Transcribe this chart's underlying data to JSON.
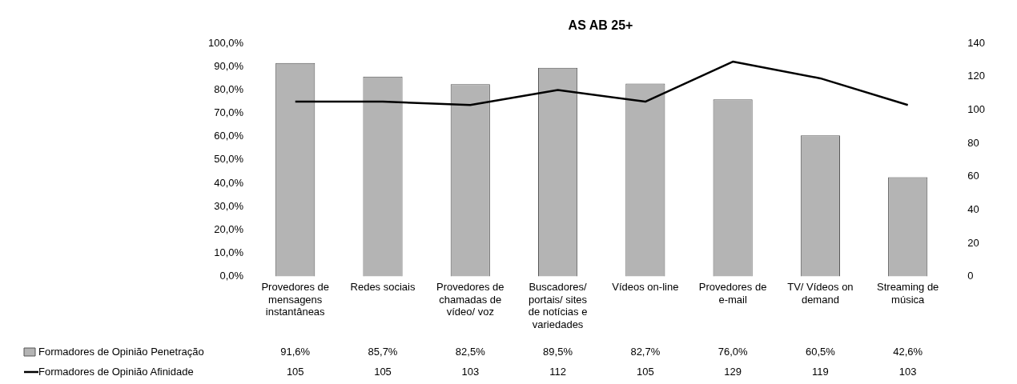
{
  "chart_data": {
    "type": "bar",
    "title": "AS AB 25+",
    "categories": [
      "Provedores de mensagens instantâneas",
      "Redes sociais",
      "Provedores de chamadas de vídeo/ voz",
      "Buscadores/ portais/ sites de notícias e variedades",
      "Vídeos on-line",
      "Provedores de e-mail",
      "TV/ Vídeos on demand",
      "Streaming de música"
    ],
    "series": [
      {
        "name": "Formadores de Opinião Penetração",
        "color": "#b4b4b4",
        "values": [
          91.6,
          85.7,
          82.5,
          89.5,
          82.7,
          76.0,
          60.5,
          42.6
        ],
        "value_labels": [
          "91,6%",
          "85,7%",
          "82,5%",
          "89,5%",
          "82,7%",
          "76,0%",
          "60,5%",
          "42,6%"
        ]
      },
      {
        "name": "Formadores de Opinião Afinidade",
        "type": "line",
        "axis": "y2",
        "color": "#000000",
        "values": [
          105,
          105,
          103,
          112,
          105,
          129,
          119,
          103
        ],
        "value_labels": [
          "105",
          "105",
          "103",
          "112",
          "105",
          "129",
          "119",
          "103"
        ]
      }
    ],
    "ylim": [
      0,
      100
    ],
    "yticks": [
      {
        "value": 0,
        "label": "0,0%"
      },
      {
        "value": 10,
        "label": "10,0%"
      },
      {
        "value": 20,
        "label": "20,0%"
      },
      {
        "value": 30,
        "label": "30,0%"
      },
      {
        "value": 40,
        "label": "40,0%"
      },
      {
        "value": 50,
        "label": "50,0%"
      },
      {
        "value": 60,
        "label": "60,0%"
      },
      {
        "value": 70,
        "label": "70,0%"
      },
      {
        "value": 80,
        "label": "80,0%"
      },
      {
        "value": 90,
        "label": "90,0%"
      },
      {
        "value": 100,
        "label": "100,0%"
      }
    ],
    "y2lim": [
      0,
      140
    ],
    "y2ticks": [
      0,
      20,
      40,
      60,
      80,
      100,
      120,
      140
    ],
    "grid": false,
    "legend": "bottom left",
    "marker": "none"
  }
}
